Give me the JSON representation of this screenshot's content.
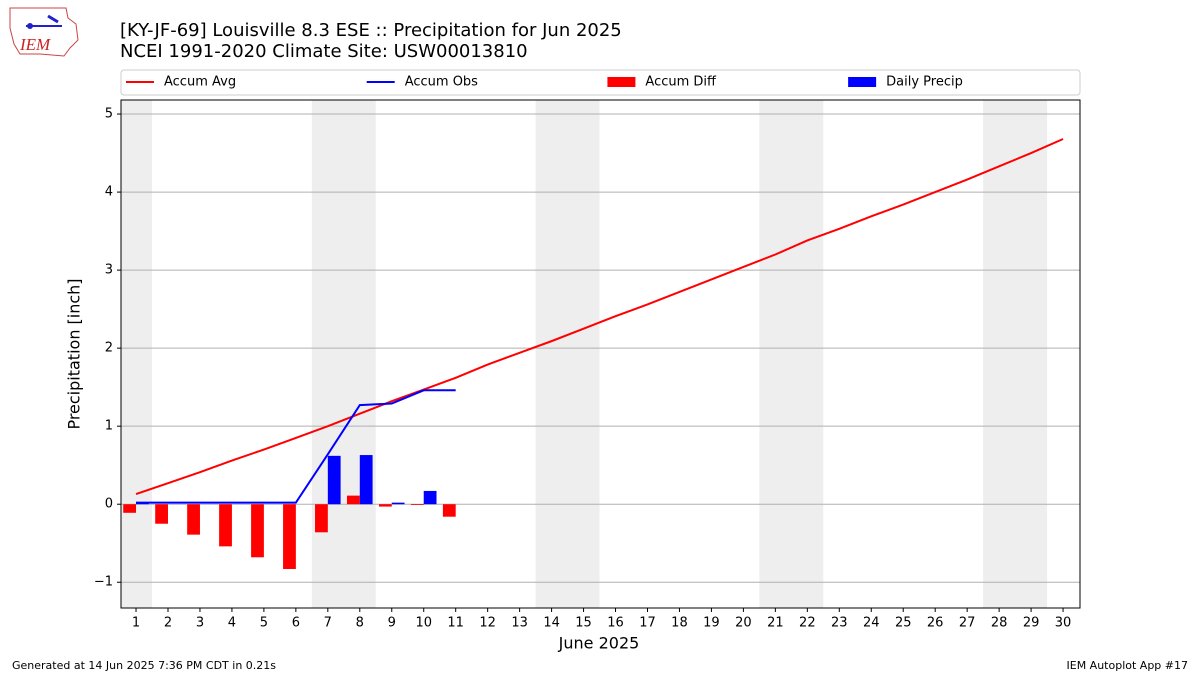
{
  "logo_text": "IEM",
  "footer_left": "Generated at 14 Jun 2025 7:36 PM CDT in 0.21s",
  "footer_right": "IEM Autoplot App #17",
  "chart_data": {
    "type": "line",
    "title": "[KY-JF-69] Louisville 8.3 ESE :: Precipitation for Jun 2025",
    "subtitle": "NCEI 1991-2020 Climate Site: USW00013810",
    "x_label": "June 2025",
    "y_label": "Precipitation [inch]",
    "x": [
      1,
      2,
      3,
      4,
      5,
      6,
      7,
      8,
      9,
      10,
      11,
      12,
      13,
      14,
      15,
      16,
      17,
      18,
      19,
      20,
      21,
      22,
      23,
      24,
      25,
      26,
      27,
      28,
      29,
      30
    ],
    "xlim": [
      0.53,
      30.53
    ],
    "xticks": [
      1,
      2,
      3,
      4,
      5,
      6,
      7,
      8,
      9,
      10,
      11,
      12,
      13,
      14,
      15,
      16,
      17,
      18,
      19,
      20,
      21,
      22,
      23,
      24,
      25,
      26,
      27,
      28,
      29,
      30
    ],
    "ylim": [
      -1.33,
      5.18
    ],
    "yticks": [
      {
        "value": -1,
        "label": "−1"
      },
      0,
      1,
      2,
      3,
      4,
      5
    ],
    "grid": true,
    "shaded_ranges": [
      [
        0.5,
        1.5
      ],
      [
        6.5,
        8.5
      ],
      [
        13.5,
        15.5
      ],
      [
        20.5,
        22.5
      ],
      [
        27.5,
        29.5
      ]
    ],
    "shade_color": "#eeeeee",
    "series": [
      {
        "name": "Accum Avg",
        "color": "#ff0000",
        "kind": "line",
        "values": [
          0.13,
          0.27,
          0.41,
          0.56,
          0.7,
          0.85,
          1.0,
          1.16,
          1.32,
          1.47,
          1.62,
          1.79,
          1.94,
          2.09,
          2.25,
          2.41,
          2.56,
          2.72,
          2.88,
          3.04,
          3.2,
          3.38,
          3.53,
          3.69,
          3.84,
          4.0,
          4.16,
          4.33,
          4.5,
          4.68
        ]
      },
      {
        "name": "Accum Obs",
        "color": "#0000ff",
        "kind": "line",
        "values": [
          0.02,
          0.02,
          0.02,
          0.02,
          0.02,
          0.02,
          0.64,
          1.27,
          1.29,
          1.46,
          1.46,
          null,
          null,
          null,
          null,
          null,
          null,
          null,
          null,
          null,
          null,
          null,
          null,
          null,
          null,
          null,
          null,
          null,
          null,
          null
        ]
      },
      {
        "name": "Accum Diff",
        "color": "#ff0000",
        "kind": "bar",
        "values": [
          -0.11,
          -0.25,
          -0.39,
          -0.54,
          -0.68,
          -0.83,
          -0.36,
          0.11,
          -0.03,
          -0.01,
          -0.16,
          null,
          null,
          null,
          null,
          null,
          null,
          null,
          null,
          null,
          null,
          null,
          null,
          null,
          null,
          null,
          null,
          null,
          null,
          null
        ]
      },
      {
        "name": "Daily Precip",
        "color": "#0000ff",
        "kind": "bar",
        "values": [
          0.02,
          0,
          0,
          0,
          0,
          0,
          0.62,
          0.63,
          0.02,
          0.17,
          0,
          null,
          null,
          null,
          null,
          null,
          null,
          null,
          null,
          null,
          null,
          null,
          null,
          null,
          null,
          null,
          null,
          null,
          null,
          null
        ]
      }
    ]
  }
}
